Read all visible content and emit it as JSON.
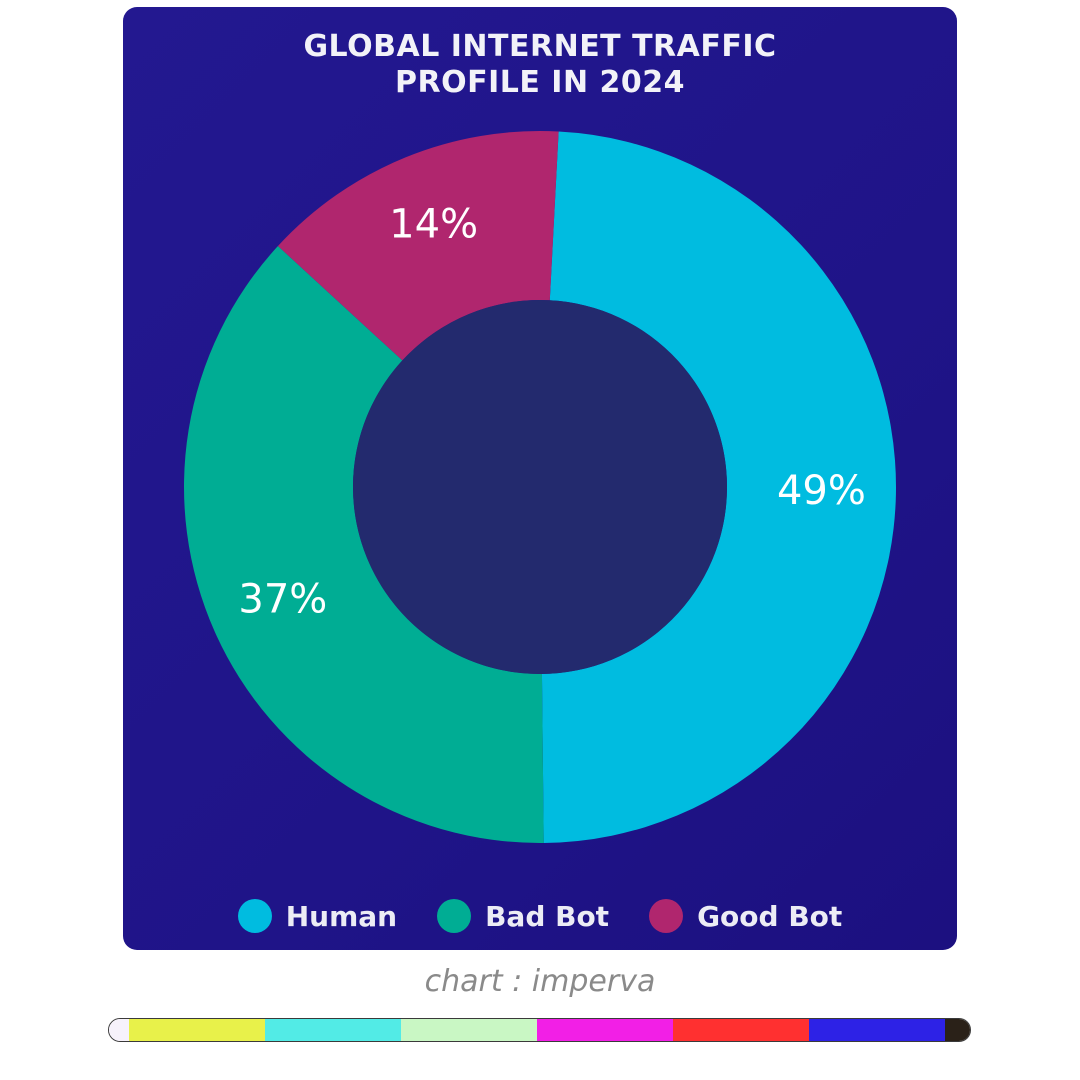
{
  "chart_data": {
    "type": "pie",
    "title": "GLOBAL INTERNET TRAFFIC PROFILE IN 2024",
    "categories": [
      "Human",
      "Bad Bot",
      "Good Bot"
    ],
    "values": [
      49,
      37,
      14
    ],
    "value_labels": [
      "49%",
      "37%",
      "14%"
    ],
    "colors": [
      "#00bce0",
      "#00ad94",
      "#b0266e"
    ],
    "donut": true,
    "legend": "bottom",
    "source": "chart : imperva"
  }
}
